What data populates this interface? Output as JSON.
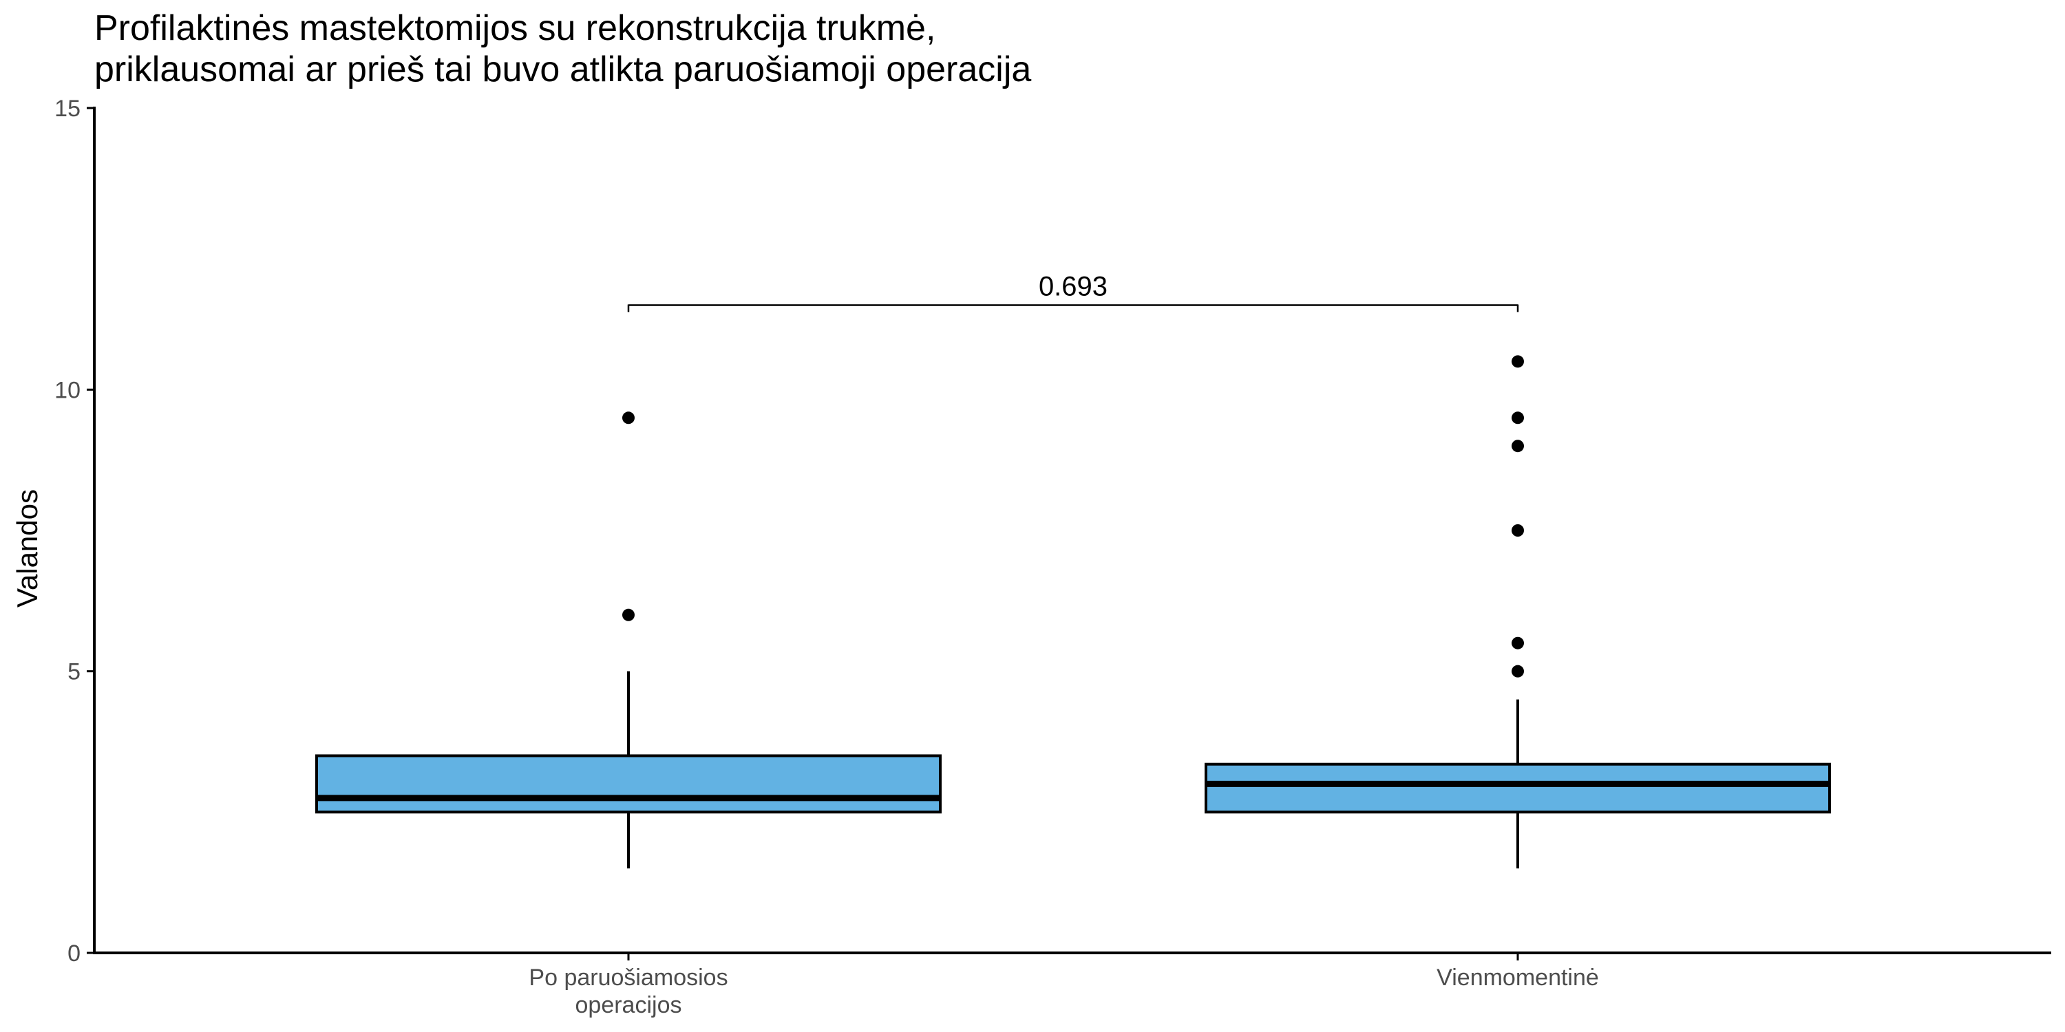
{
  "chart_data": {
    "type": "box",
    "title_lines": [
      "Profilaktinės mastektomijos su rekonstrukcija trukmė,",
      "priklausomai ar prieš tai buvo atlikta paruošiamoji operacija"
    ],
    "xlabel": "",
    "ylabel": "Valandos",
    "ylim": [
      0,
      15
    ],
    "y_ticks": [
      "0",
      "5",
      "10",
      "15"
    ],
    "grid": false,
    "legend": "none",
    "categories": [
      [
        "Po paruošiamosios",
        "operacijos"
      ],
      [
        "Vienmomentinė"
      ]
    ],
    "boxes": [
      {
        "whisker_low": 1.5,
        "q1": 2.5,
        "median": 2.75,
        "q3": 3.5,
        "whisker_high": 5.0,
        "outliers": [
          6.0,
          9.5
        ]
      },
      {
        "whisker_low": 1.5,
        "q1": 2.5,
        "median": 3.0,
        "q3": 3.35,
        "whisker_high": 4.5,
        "outliers": [
          5.0,
          5.5,
          7.5,
          9.0,
          9.5,
          10.5
        ]
      }
    ],
    "comparison": {
      "label": "0.693",
      "y": 11.5,
      "from_category": 0,
      "to_category": 1
    },
    "colors": {
      "box_fill": "#62B2E3",
      "box_stroke": "#000000",
      "axis": "#000000",
      "tick_label": "#4d4d4d"
    }
  }
}
